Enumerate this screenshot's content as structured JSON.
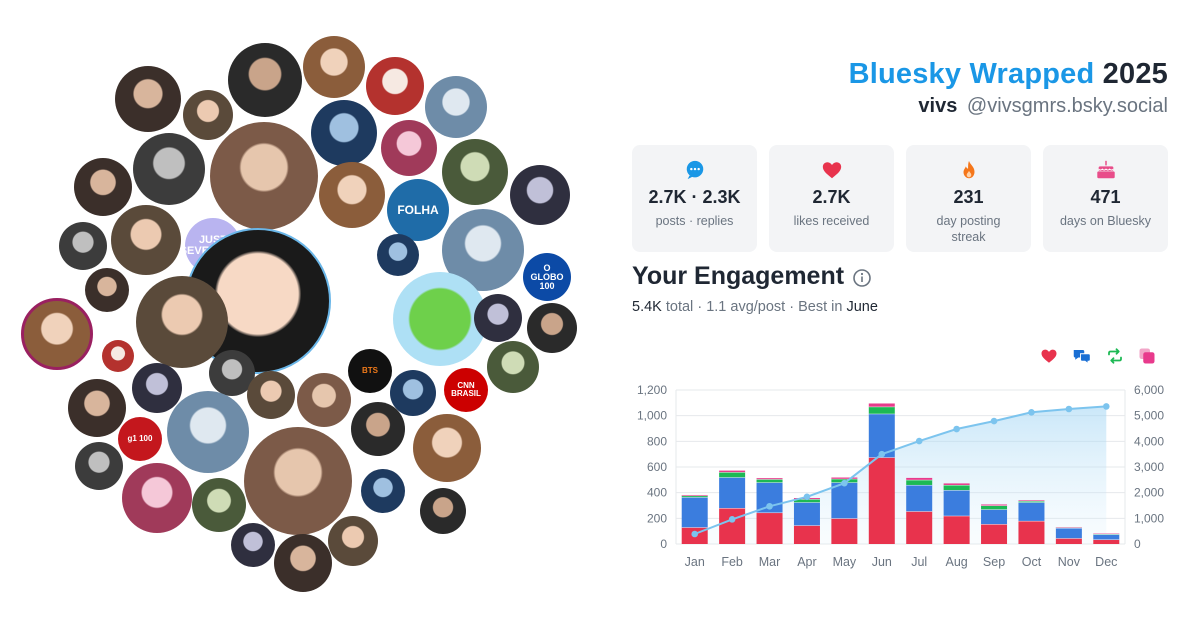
{
  "header": {
    "brand": "Bluesky Wrapped",
    "year": "2025",
    "display_name": "vivs",
    "handle": "@vivsgmrs.bsky.social"
  },
  "stats": [
    {
      "icon": "chat-bubble-icon",
      "color": "#1a97e6",
      "value": "2.7K · 2.3K",
      "label": "posts · replies"
    },
    {
      "icon": "heart-icon",
      "color": "#e8334d",
      "value": "2.7K",
      "label": "likes received"
    },
    {
      "icon": "flame-icon",
      "color": "#f5761a",
      "value": "231",
      "label": "day posting streak"
    },
    {
      "icon": "cake-icon",
      "color": "#e84d8a",
      "value": "471",
      "label": "days on Bluesky"
    }
  ],
  "engagement": {
    "title": "Your Engagement",
    "total": "5.4K",
    "total_label": "total",
    "avg": "1.1 avg/post",
    "best_prefix": "Best in",
    "best_month": "June"
  },
  "legend": [
    {
      "icon": "heart-icon",
      "color": "#e8334d"
    },
    {
      "icon": "reply-icon",
      "color": "#1a6fd4"
    },
    {
      "icon": "repost-icon",
      "color": "#1db954"
    },
    {
      "icon": "quote-icon",
      "color": "#e83a8c"
    }
  ],
  "chart_data": {
    "type": "bar",
    "stacked": true,
    "categories": [
      "Jan",
      "Feb",
      "Mar",
      "Apr",
      "May",
      "Jun",
      "Jul",
      "Aug",
      "Sep",
      "Oct",
      "Nov",
      "Dec"
    ],
    "series": [
      {
        "values": [
          130,
          280,
          245,
          145,
          200,
          675,
          255,
          220,
          155,
          180,
          45,
          35
        ],
        "color": "#e8334d"
      },
      {
        "values": [
          235,
          240,
          235,
          180,
          280,
          340,
          205,
          200,
          115,
          145,
          80,
          40
        ],
        "color": "#3b7dde"
      },
      {
        "values": [
          12,
          40,
          25,
          25,
          28,
          55,
          40,
          40,
          30,
          10,
          4,
          5
        ],
        "color": "#1db954"
      },
      {
        "values": [
          5,
          12,
          8,
          8,
          10,
          25,
          15,
          12,
          8,
          5,
          3,
          3
        ],
        "color": "#e83a8c"
      }
    ],
    "cumulative": {
      "values": [
        390,
        960,
        1470,
        1840,
        2370,
        3500,
        4010,
        4480,
        4790,
        5130,
        5260,
        5360
      ],
      "color": "#7cc4ee",
      "axis": "right"
    },
    "ylim_left": [
      0,
      1200
    ],
    "yticks_left": [
      "0",
      "200",
      "400",
      "600",
      "800",
      "1,000",
      "1,200"
    ],
    "ylim_right": [
      0,
      6000
    ],
    "yticks_right": [
      "0",
      "1,000",
      "2,000",
      "3,000",
      "4,000",
      "5,000",
      "6,000"
    ],
    "grid": true
  },
  "collage": {
    "avatars": [
      {
        "label": "",
        "colors": [
          "#2a2a2a",
          "#c9a48a"
        ]
      },
      {
        "label": "",
        "colors": [
          "#3a3a3a",
          "#d9b8a0"
        ]
      },
      {
        "label": "",
        "colors": [
          "#222222",
          "#e0c0b0"
        ]
      },
      {
        "label": "",
        "colors": [
          "#f4d54a",
          "#4aa0e0"
        ]
      },
      {
        "label": "",
        "colors": [
          "#c0273a",
          "#f2f2f2"
        ]
      },
      {
        "label": "",
        "colors": [
          "#bfa58e",
          "#f0e0d0"
        ]
      },
      {
        "label": "JUST SEVENTEEN",
        "colors": [
          "#b9b4f0",
          "#ffffff"
        ]
      },
      {
        "label": "FOLHA",
        "colors": [
          "#1f6ca8",
          "#ffffff"
        ]
      },
      {
        "label": "O GLOBO 100",
        "colors": [
          "#0c4aa6",
          "#ffffff"
        ]
      },
      {
        "label": "BTS",
        "colors": [
          "#111111",
          "#f07a1a"
        ]
      },
      {
        "label": "CNN BRASIL",
        "colors": [
          "#cc0000",
          "#ffffff"
        ]
      },
      {
        "label": "g1 100",
        "colors": [
          "#c4171d",
          "#ffffff"
        ]
      }
    ]
  }
}
